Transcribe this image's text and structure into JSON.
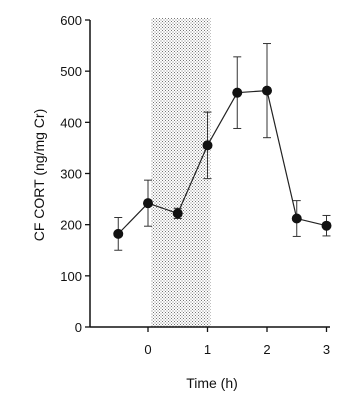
{
  "chart_data": {
    "type": "line",
    "title": "",
    "xlabel": "Time (h)",
    "ylabel": "CF CORT (ng/mg Cr)",
    "xlim": [
      -0.7,
      3.1
    ],
    "ylim": [
      0,
      600
    ],
    "xticks": [
      0,
      1,
      2,
      3
    ],
    "yticks": [
      0,
      100,
      200,
      300,
      400,
      500,
      600
    ],
    "grid": false,
    "legend": "none",
    "shaded_region": {
      "x_start": 0.05,
      "x_end": 1.05
    },
    "series": [
      {
        "x": [
          -0.5,
          0,
          0.5,
          1,
          1.5,
          2,
          2.5,
          3
        ],
        "y": [
          182,
          242,
          222,
          355,
          458,
          462,
          212,
          198
        ],
        "error": [
          32,
          45,
          10,
          65,
          70,
          92,
          35,
          20
        ]
      }
    ],
    "colors": {
      "line": "#222222",
      "marker": "#111111",
      "shade": "#888888"
    }
  }
}
